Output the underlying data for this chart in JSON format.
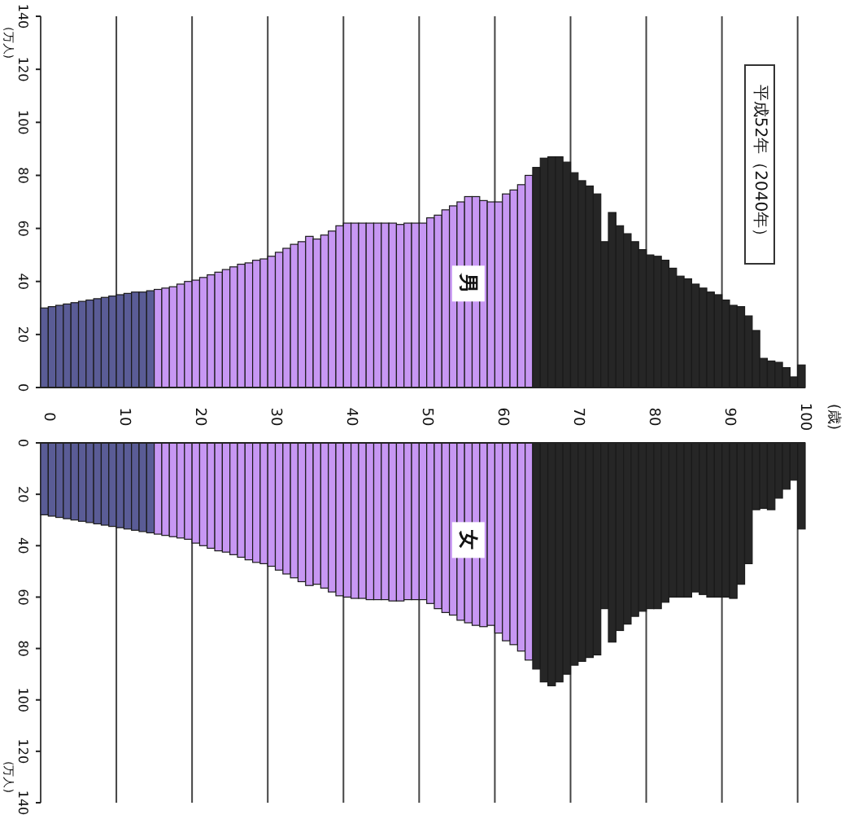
{
  "chart_data": [
    {
      "type": "bar",
      "title": "平成52年（2040年）",
      "ylabel": "(万人)",
      "tick_labels": "y",
      "grid": "x",
      "ylim": [
        0,
        140
      ],
      "yticks": [
        0,
        20,
        40,
        60,
        80,
        100,
        120,
        140
      ],
      "categories": [
        "0",
        null,
        null,
        null,
        null,
        null,
        null,
        null,
        null,
        null,
        "10",
        null,
        null,
        null,
        null,
        null,
        null,
        null,
        null,
        null,
        "20",
        null,
        null,
        null,
        null,
        null,
        null,
        null,
        null,
        null,
        "30",
        null,
        null,
        null,
        null,
        null,
        null,
        null,
        null,
        null,
        "40",
        null,
        null,
        null,
        null,
        null,
        null,
        null,
        null,
        null,
        "50",
        null,
        null,
        null,
        null,
        null,
        null,
        null,
        null,
        null,
        "60",
        null,
        null,
        null,
        null,
        null,
        null,
        null,
        null,
        null,
        "70",
        null,
        null,
        null,
        null,
        null,
        null,
        null,
        null,
        null,
        "80",
        null,
        null,
        null,
        null,
        null,
        null,
        null,
        null,
        null,
        "90",
        null,
        null,
        null,
        null,
        null,
        null,
        null,
        null,
        null,
        "100"
      ],
      "series": [
        {
          "name": "男",
          "values": [
            30,
            30.5,
            31,
            31.5,
            32,
            32.5,
            33,
            33.5,
            34,
            34.5,
            35,
            35.5,
            36,
            36,
            36.5,
            37,
            37.5,
            38,
            39,
            40,
            40.5,
            41.5,
            42.5,
            43.5,
            44.5,
            45.5,
            46.5,
            47,
            48,
            48.5,
            49.5,
            51,
            52.5,
            54,
            55,
            57,
            56,
            57.5,
            59,
            61,
            62,
            62,
            62,
            62,
            62,
            62,
            62,
            61.5,
            62,
            62,
            62,
            64,
            65,
            67,
            68.5,
            70,
            72,
            72,
            70.5,
            70,
            70,
            73,
            74.5,
            76.5,
            80,
            83,
            86.5,
            87,
            87,
            85,
            81,
            78,
            76,
            73,
            55,
            66,
            61,
            58,
            55,
            52,
            50,
            49.5,
            48,
            45,
            42,
            41,
            39,
            37.5,
            36,
            35,
            33,
            31,
            30.5,
            27,
            21.5,
            11,
            10,
            9.5,
            7.5,
            4,
            8.5
          ],
          "colors": [
            "#5a5c96",
            "#5a5c96",
            "#5a5c96",
            "#5a5c96",
            "#5a5c96",
            "#5a5c96",
            "#5a5c96",
            "#5a5c96",
            "#5a5c96",
            "#5a5c96",
            "#5a5c96",
            "#5a5c96",
            "#5a5c96",
            "#5a5c96",
            "#5a5c96",
            "#c797f3",
            "#c797f3",
            "#c797f3",
            "#c797f3",
            "#c797f3",
            "#c797f3",
            "#c797f3",
            "#c797f3",
            "#c797f3",
            "#c797f3",
            "#c797f3",
            "#c797f3",
            "#c797f3",
            "#c797f3",
            "#c797f3",
            "#c797f3",
            "#c797f3",
            "#c797f3",
            "#c797f3",
            "#c797f3",
            "#c797f3",
            "#c797f3",
            "#c797f3",
            "#c797f3",
            "#c797f3",
            "#c797f3",
            "#c797f3",
            "#c797f3",
            "#c797f3",
            "#c797f3",
            "#c797f3",
            "#c797f3",
            "#c797f3",
            "#c797f3",
            "#c797f3",
            "#c797f3",
            "#c797f3",
            "#c797f3",
            "#c797f3",
            "#c797f3",
            "#c797f3",
            "#c797f3",
            "#c797f3",
            "#c797f3",
            "#c797f3",
            "#c797f3",
            "#c797f3",
            "#c797f3",
            "#c797f3",
            "#c797f3",
            "#262626",
            "#262626",
            "#262626",
            "#262626",
            "#262626",
            "#262626",
            "#262626",
            "#262626",
            "#262626",
            "#262626",
            "#262626",
            "#262626",
            "#262626",
            "#262626",
            "#262626",
            "#262626",
            "#262626",
            "#262626",
            "#262626",
            "#262626",
            "#262626",
            "#262626",
            "#262626",
            "#262626",
            "#262626",
            "#262626",
            "#262626",
            "#262626",
            "#262626",
            "#262626",
            "#262626",
            "#262626",
            "#262626",
            "#262626",
            "#262626",
            "#262626"
          ]
        }
      ]
    },
    {
      "type": "bar",
      "annotations": [
        "(歳)"
      ],
      "ylabel": "(万人)",
      "grid": "x",
      "ylim": [
        140,
        0
      ],
      "yticks": [
        0,
        20,
        40,
        60,
        80,
        100,
        120,
        140
      ],
      "categories": [
        "0",
        null,
        null,
        null,
        null,
        null,
        null,
        null,
        null,
        null,
        "10",
        null,
        null,
        null,
        null,
        null,
        null,
        null,
        null,
        null,
        "20",
        null,
        null,
        null,
        null,
        null,
        null,
        null,
        null,
        null,
        "30",
        null,
        null,
        null,
        null,
        null,
        null,
        null,
        null,
        null,
        "40",
        null,
        null,
        null,
        null,
        null,
        null,
        null,
        null,
        null,
        "50",
        null,
        null,
        null,
        null,
        null,
        null,
        null,
        null,
        null,
        "60",
        null,
        null,
        null,
        null,
        null,
        null,
        null,
        null,
        null,
        "70",
        null,
        null,
        null,
        null,
        null,
        null,
        null,
        null,
        null,
        "80",
        null,
        null,
        null,
        null,
        null,
        null,
        null,
        null,
        null,
        "90",
        null,
        null,
        null,
        null,
        null,
        null,
        null,
        null,
        null,
        "100"
      ],
      "series": [
        {
          "name": "女",
          "values": [
            28,
            28.5,
            29,
            29.5,
            30,
            30.5,
            31,
            31.5,
            32,
            32.5,
            33,
            33.5,
            34,
            34.5,
            35,
            35.5,
            36,
            36.5,
            37,
            37.5,
            39,
            40,
            41,
            42,
            42.5,
            43.5,
            44.5,
            45.5,
            46.5,
            47,
            48,
            49.5,
            51,
            52.5,
            54,
            55.5,
            55,
            56.5,
            58,
            59.5,
            60,
            60.5,
            60.5,
            61,
            61,
            61,
            61.5,
            61.5,
            61,
            61,
            61,
            62.5,
            64.5,
            66,
            67,
            69,
            70,
            71,
            71.5,
            71,
            74,
            77,
            78.5,
            81,
            84.5,
            88,
            93,
            94.5,
            93,
            90,
            86.5,
            85,
            83.5,
            82.5,
            64.5,
            77.5,
            73,
            70.5,
            67.5,
            65.5,
            64.5,
            64.5,
            62,
            60,
            60,
            60,
            58,
            59,
            60,
            60,
            60,
            60.5,
            55,
            47,
            26,
            25.5,
            26,
            21.5,
            18,
            14.5,
            33.5
          ],
          "colors": [
            "#5a5c96",
            "#5a5c96",
            "#5a5c96",
            "#5a5c96",
            "#5a5c96",
            "#5a5c96",
            "#5a5c96",
            "#5a5c96",
            "#5a5c96",
            "#5a5c96",
            "#5a5c96",
            "#5a5c96",
            "#5a5c96",
            "#5a5c96",
            "#5a5c96",
            "#c797f3",
            "#c797f3",
            "#c797f3",
            "#c797f3",
            "#c797f3",
            "#c797f3",
            "#c797f3",
            "#c797f3",
            "#c797f3",
            "#c797f3",
            "#c797f3",
            "#c797f3",
            "#c797f3",
            "#c797f3",
            "#c797f3",
            "#c797f3",
            "#c797f3",
            "#c797f3",
            "#c797f3",
            "#c797f3",
            "#c797f3",
            "#c797f3",
            "#c797f3",
            "#c797f3",
            "#c797f3",
            "#c797f3",
            "#c797f3",
            "#c797f3",
            "#c797f3",
            "#c797f3",
            "#c797f3",
            "#c797f3",
            "#c797f3",
            "#c797f3",
            "#c797f3",
            "#c797f3",
            "#c797f3",
            "#c797f3",
            "#c797f3",
            "#c797f3",
            "#c797f3",
            "#c797f3",
            "#c797f3",
            "#c797f3",
            "#c797f3",
            "#c797f3",
            "#c797f3",
            "#c797f3",
            "#c797f3",
            "#c797f3",
            "#262626",
            "#262626",
            "#262626",
            "#262626",
            "#262626",
            "#262626",
            "#262626",
            "#262626",
            "#262626",
            "#262626",
            "#262626",
            "#262626",
            "#262626",
            "#262626",
            "#262626",
            "#262626",
            "#262626",
            "#262626",
            "#262626",
            "#262626",
            "#262626",
            "#262626",
            "#262626",
            "#262626",
            "#262626",
            "#262626",
            "#262626",
            "#262626",
            "#262626",
            "#262626",
            "#262626",
            "#262626",
            "#262626",
            "#262626",
            "#262626",
            "#262626"
          ]
        }
      ]
    }
  ]
}
